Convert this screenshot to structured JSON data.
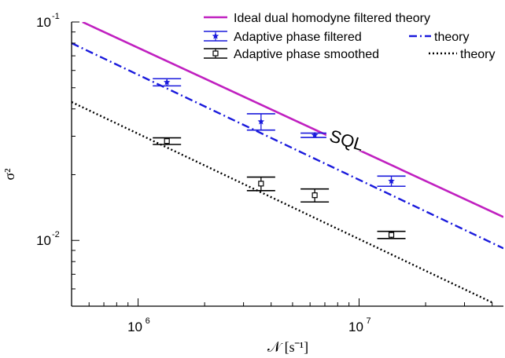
{
  "chart_data": {
    "type": "scatter",
    "x_scale": "log",
    "y_scale": "log",
    "xlim": [
      500000,
      45000000
    ],
    "ylim": [
      0.005,
      0.1
    ],
    "xlabel": "𝒩 [s⁻¹]",
    "ylabel": "σ²",
    "x_ticks": [
      {
        "value": 1000000,
        "base": "10",
        "exp": "6"
      },
      {
        "value": 10000000,
        "base": "10",
        "exp": "7"
      }
    ],
    "y_ticks": [
      {
        "value": 0.1,
        "base": "10",
        "exp": "-1"
      },
      {
        "value": 0.01,
        "base": "10",
        "exp": "-2"
      }
    ],
    "annotation": {
      "text": "SQL",
      "x": 8800000,
      "y": 0.027
    },
    "series": [
      {
        "name": "Ideal dual homodyne filtered theory",
        "kind": "line",
        "color": "#c020c0",
        "style": "solid",
        "x": [
          560000,
          45000000
        ],
        "y": [
          0.1,
          0.0128
        ]
      },
      {
        "name": "Adaptive phase filtered",
        "kind": "points",
        "color": "#1a1adc",
        "marker": "star",
        "x": [
          1350000,
          3600000,
          6300000,
          14000000
        ],
        "y": [
          0.053,
          0.035,
          0.0303,
          0.0187
        ],
        "y_err_low": [
          0.051,
          0.032,
          0.0296,
          0.0177
        ],
        "y_err_high": [
          0.055,
          0.038,
          0.031,
          0.0197
        ]
      },
      {
        "name": "theory",
        "kind": "line",
        "color": "#1a1adc",
        "style": "dashdot",
        "x": [
          500000,
          45000000
        ],
        "y": [
          0.08,
          0.0092
        ]
      },
      {
        "name": "Adaptive phase smoothed",
        "kind": "points",
        "color": "#000000",
        "marker": "square",
        "x": [
          1350000,
          3600000,
          6300000,
          14000000
        ],
        "y": [
          0.0285,
          0.0182,
          0.0161,
          0.0106
        ],
        "y_err_low": [
          0.0275,
          0.0169,
          0.015,
          0.0102
        ],
        "y_err_high": [
          0.0295,
          0.0195,
          0.0172,
          0.011
        ]
      },
      {
        "name": "theory",
        "kind": "line",
        "color": "#000000",
        "style": "dotted",
        "x": [
          500000,
          40000000
        ],
        "y": [
          0.043,
          0.0052
        ]
      }
    ]
  }
}
